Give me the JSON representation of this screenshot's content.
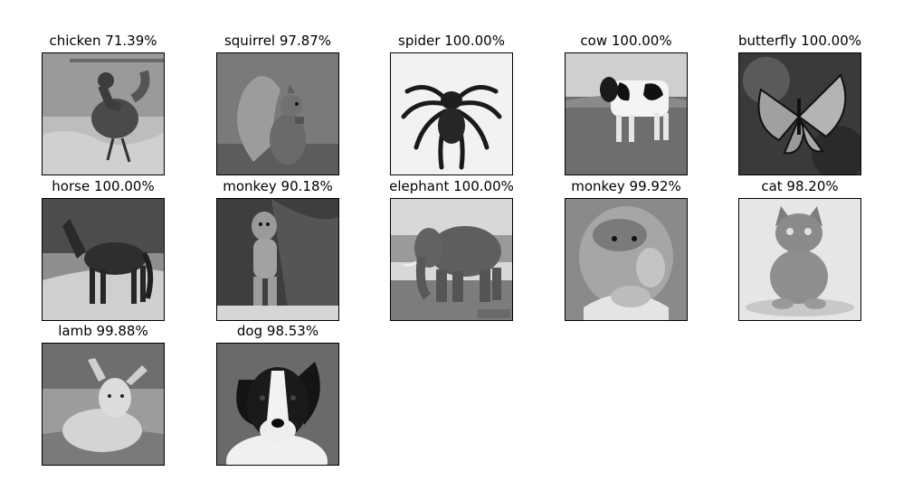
{
  "panels": [
    {
      "caption": "chicken 71.39%",
      "subject": "chicken"
    },
    {
      "caption": "squirrel 97.87%",
      "subject": "squirrel"
    },
    {
      "caption": "spider 100.00%",
      "subject": "spider"
    },
    {
      "caption": "cow 100.00%",
      "subject": "cow"
    },
    {
      "caption": "butterfly 100.00%",
      "subject": "butterfly"
    },
    {
      "caption": "horse 100.00%",
      "subject": "horse"
    },
    {
      "caption": "monkey 90.18%",
      "subject": "monkey"
    },
    {
      "caption": "elephant 100.00%",
      "subject": "elephant"
    },
    {
      "caption": "monkey 99.92%",
      "subject": "proboscis-monkey"
    },
    {
      "caption": "cat 98.20%",
      "subject": "cat"
    },
    {
      "caption": "lamb 99.88%",
      "subject": "lamb"
    },
    {
      "caption": "dog 98.53%",
      "subject": "dog"
    }
  ],
  "colors": {
    "background": "#ffffff",
    "border": "#000000",
    "text": "#000000"
  }
}
